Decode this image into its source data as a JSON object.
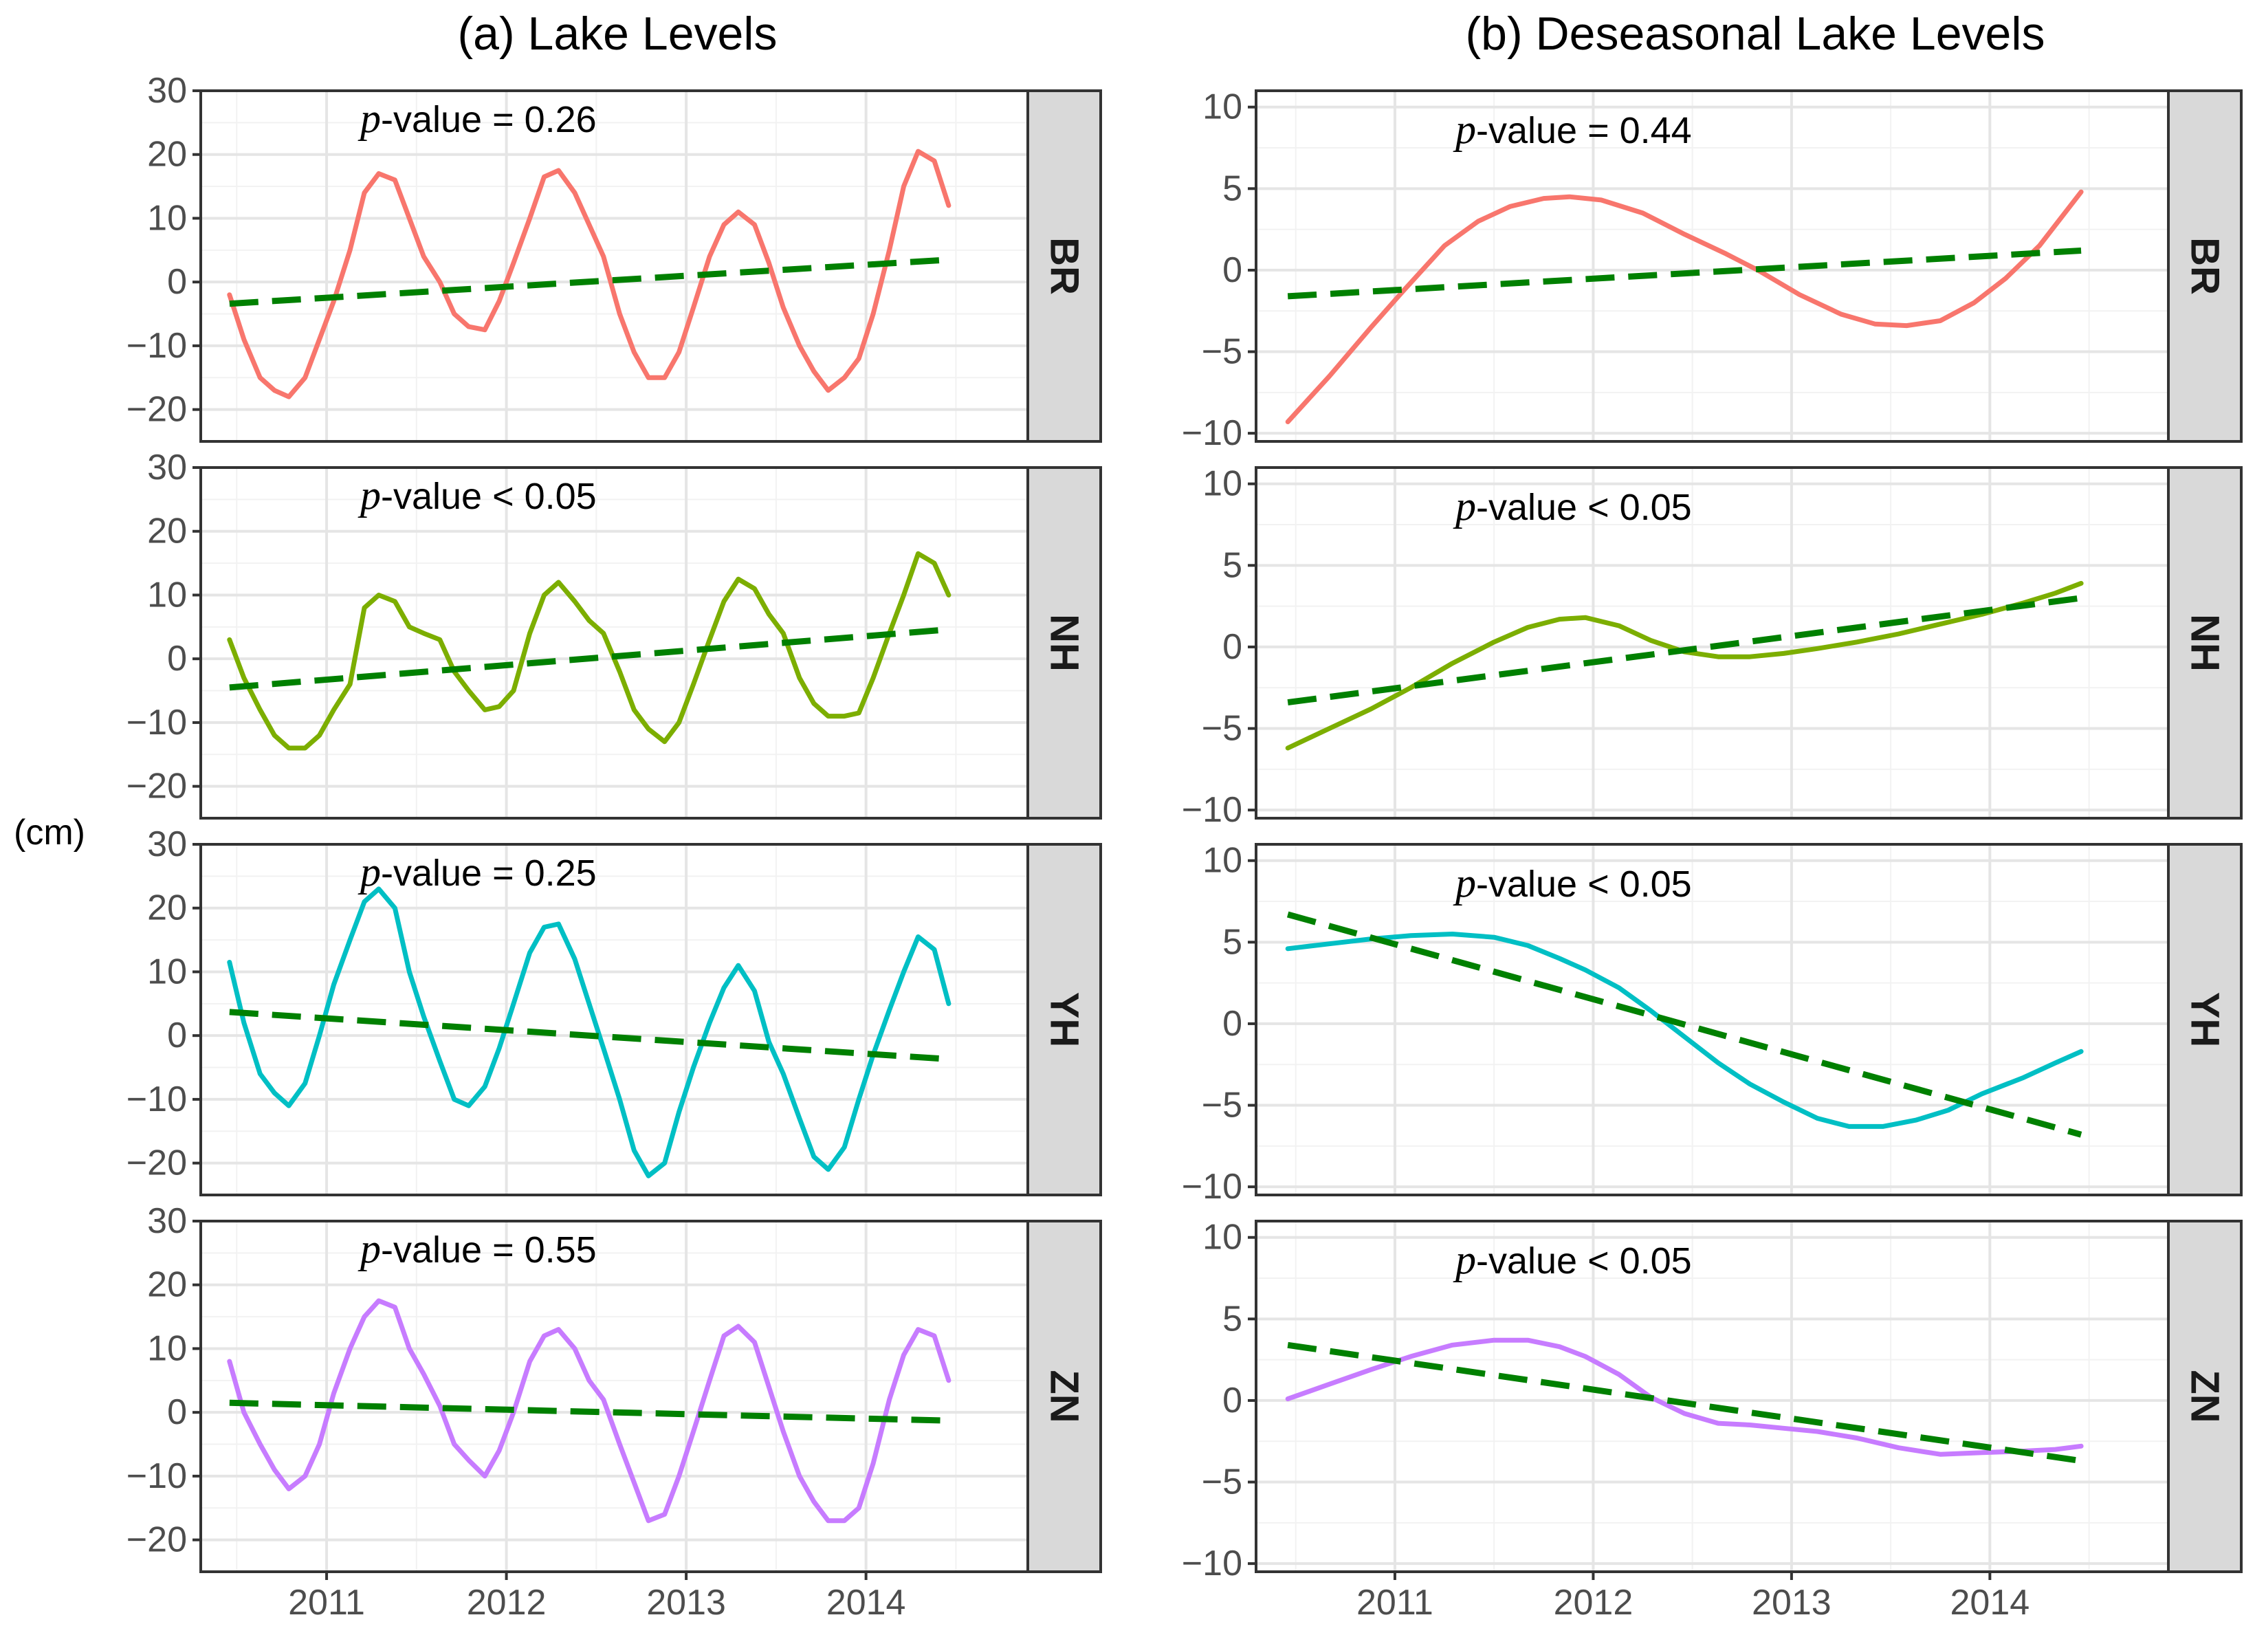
{
  "chart_data": {
    "type": "line",
    "y_axis_label": "(cm)",
    "trend_color": "#008000",
    "columns": [
      {
        "title": "(a) Lake Levels",
        "ylim": [
          -25,
          30
        ],
        "y_ticks": [
          -20,
          -10,
          0,
          10,
          20,
          30
        ],
        "y_tick_labels": [
          "−20",
          "−10",
          "0",
          "10",
          "20",
          "30"
        ],
        "x_ticks": [
          2011,
          2012,
          2013,
          2014
        ],
        "x_tick_labels": [
          "2011",
          "2012",
          "2013",
          "2014"
        ],
        "xlim": [
          2010.3,
          2014.9
        ]
      },
      {
        "title": "(b) Deseasonal Lake Levels",
        "ylim": [
          -10.5,
          11
        ],
        "y_ticks": [
          -10,
          -5,
          0,
          5,
          10
        ],
        "y_tick_labels": [
          "−10",
          "−5",
          "0",
          "5",
          "10"
        ],
        "x_ticks": [
          2011,
          2012,
          2013,
          2014
        ],
        "x_tick_labels": [
          "2011",
          "2012",
          "2013",
          "2014"
        ],
        "xlim": [
          2010.3,
          2014.9
        ]
      }
    ],
    "panels": [
      {
        "col": 0,
        "row": 0,
        "lake": "BR",
        "color": "#F8766D",
        "p_label": "p",
        "p_text": "-value = 0.26",
        "x": [
          2010.46,
          2010.54,
          2010.63,
          2010.71,
          2010.79,
          2010.88,
          2010.96,
          2011.04,
          2011.13,
          2011.21,
          2011.29,
          2011.38,
          2011.46,
          2011.54,
          2011.63,
          2011.71,
          2011.79,
          2011.88,
          2011.96,
          2012.04,
          2012.13,
          2012.21,
          2012.29,
          2012.38,
          2012.46,
          2012.54,
          2012.63,
          2012.71,
          2012.79,
          2012.88,
          2012.96,
          2013.04,
          2013.13,
          2013.21,
          2013.29,
          2013.38,
          2013.46,
          2013.54,
          2013.63,
          2013.71,
          2013.79,
          2013.88,
          2013.96,
          2014.04,
          2014.13,
          2014.21,
          2014.29,
          2014.38,
          2014.46
        ],
        "y": [
          -2,
          -9,
          -15,
          -17,
          -18,
          -15,
          -9,
          -3,
          5,
          14,
          17,
          16,
          10,
          4,
          0,
          -5,
          -7,
          -7.5,
          -3,
          3,
          10,
          16.5,
          17.5,
          14,
          9,
          4,
          -5,
          -11,
          -15,
          -15,
          -11,
          -4,
          4,
          9,
          11,
          9,
          3,
          -4,
          -10,
          -14,
          -17,
          -15,
          -12,
          -5,
          5,
          15,
          20.5,
          19,
          12
        ],
        "trend_x": [
          2010.46,
          2014.46
        ],
        "trend_y": [
          -3.4,
          3.5
        ]
      },
      {
        "col": 0,
        "row": 1,
        "lake": "NH",
        "color": "#7CAE00",
        "p_label": "p",
        "p_text": "-value < 0.05",
        "x": [
          2010.46,
          2010.54,
          2010.63,
          2010.71,
          2010.79,
          2010.88,
          2010.96,
          2011.04,
          2011.13,
          2011.21,
          2011.29,
          2011.38,
          2011.46,
          2011.54,
          2011.63,
          2011.71,
          2011.79,
          2011.88,
          2011.96,
          2012.04,
          2012.13,
          2012.21,
          2012.29,
          2012.38,
          2012.46,
          2012.54,
          2012.63,
          2012.71,
          2012.79,
          2012.88,
          2012.96,
          2013.04,
          2013.13,
          2013.21,
          2013.29,
          2013.38,
          2013.46,
          2013.54,
          2013.63,
          2013.71,
          2013.79,
          2013.88,
          2013.96,
          2014.04,
          2014.13,
          2014.21,
          2014.29,
          2014.38,
          2014.46
        ],
        "y": [
          3,
          -3,
          -8,
          -12,
          -14,
          -14,
          -12,
          -8,
          -4,
          8,
          10,
          9,
          5,
          4,
          3,
          -2,
          -5,
          -8,
          -7.5,
          -5,
          4,
          10,
          12,
          9,
          6,
          4,
          -2,
          -8,
          -11,
          -13,
          -10,
          -4,
          3,
          9,
          12.5,
          11,
          7,
          4,
          -3,
          -7,
          -9,
          -9,
          -8.5,
          -3,
          4,
          10,
          16.5,
          15,
          10
        ],
        "trend_x": [
          2010.46,
          2014.46
        ],
        "trend_y": [
          -4.5,
          4.6
        ]
      },
      {
        "col": 0,
        "row": 2,
        "lake": "YH",
        "color": "#00BFC4",
        "p_label": "p",
        "p_text": "-value = 0.25",
        "x": [
          2010.46,
          2010.54,
          2010.63,
          2010.71,
          2010.79,
          2010.88,
          2010.96,
          2011.04,
          2011.13,
          2011.21,
          2011.29,
          2011.38,
          2011.46,
          2011.54,
          2011.63,
          2011.71,
          2011.79,
          2011.88,
          2011.96,
          2012.04,
          2012.13,
          2012.21,
          2012.29,
          2012.38,
          2012.46,
          2012.54,
          2012.63,
          2012.71,
          2012.79,
          2012.88,
          2012.96,
          2013.04,
          2013.13,
          2013.21,
          2013.29,
          2013.38,
          2013.46,
          2013.54,
          2013.63,
          2013.71,
          2013.79,
          2013.88,
          2013.96,
          2014.04,
          2014.13,
          2014.21,
          2014.29,
          2014.38,
          2014.46
        ],
        "y": [
          11.5,
          2,
          -6,
          -9,
          -11,
          -7.5,
          0,
          8,
          15,
          21,
          23,
          20,
          10,
          3,
          -4,
          -10,
          -11,
          -8,
          -2,
          5,
          13,
          17,
          17.5,
          12,
          5,
          -2,
          -10,
          -18,
          -22,
          -20,
          -12,
          -5,
          2,
          7.5,
          11,
          7,
          -1,
          -6,
          -13,
          -19,
          -21,
          -17.5,
          -10,
          -3,
          4,
          10,
          15.5,
          13.5,
          5
        ],
        "trend_x": [
          2010.46,
          2014.46
        ],
        "trend_y": [
          3.7,
          -3.7
        ]
      },
      {
        "col": 0,
        "row": 3,
        "lake": "ZN",
        "color": "#C77CFF",
        "p_label": "p",
        "p_text": "-value = 0.55",
        "x": [
          2010.46,
          2010.54,
          2010.63,
          2010.71,
          2010.79,
          2010.88,
          2010.96,
          2011.04,
          2011.13,
          2011.21,
          2011.29,
          2011.38,
          2011.46,
          2011.54,
          2011.63,
          2011.71,
          2011.79,
          2011.88,
          2011.96,
          2012.04,
          2012.13,
          2012.21,
          2012.29,
          2012.38,
          2012.46,
          2012.54,
          2012.63,
          2012.71,
          2012.79,
          2012.88,
          2012.96,
          2013.04,
          2013.13,
          2013.21,
          2013.29,
          2013.38,
          2013.46,
          2013.54,
          2013.63,
          2013.71,
          2013.79,
          2013.88,
          2013.96,
          2014.04,
          2014.13,
          2014.21,
          2014.29,
          2014.38,
          2014.46
        ],
        "y": [
          8,
          0,
          -5,
          -9,
          -12,
          -10,
          -5,
          3,
          10,
          15,
          17.5,
          16.5,
          10,
          6,
          1,
          -5,
          -7.5,
          -10,
          -6,
          0,
          8,
          12,
          13,
          10,
          5,
          2,
          -5,
          -11,
          -17,
          -16,
          -10,
          -3,
          5,
          12,
          13.5,
          11,
          4,
          -3,
          -10,
          -14,
          -17,
          -17,
          -15,
          -8,
          2,
          9,
          13,
          12,
          5
        ],
        "trend_x": [
          2010.46,
          2014.46
        ],
        "trend_y": [
          1.5,
          -1.3
        ]
      },
      {
        "col": 1,
        "row": 0,
        "lake": "BR",
        "color": "#F8766D",
        "p_label": "p",
        "p_text": "-value = 0.44",
        "x": [
          2010.46,
          2010.67,
          2010.88,
          2011.04,
          2011.25,
          2011.42,
          2011.58,
          2011.75,
          2011.88,
          2012.04,
          2012.25,
          2012.46,
          2012.67,
          2012.83,
          2013.04,
          2013.25,
          2013.42,
          2013.58,
          2013.75,
          2013.92,
          2014.08,
          2014.25,
          2014.46
        ],
        "y": [
          -9.3,
          -6.5,
          -3.5,
          -1.3,
          1.5,
          3.0,
          3.9,
          4.4,
          4.5,
          4.3,
          3.5,
          2.2,
          1.0,
          0.0,
          -1.5,
          -2.7,
          -3.3,
          -3.4,
          -3.1,
          -2.0,
          -0.5,
          1.5,
          4.8
        ],
        "trend_x": [
          2010.46,
          2014.46
        ],
        "trend_y": [
          -1.6,
          1.2
        ]
      },
      {
        "col": 1,
        "row": 1,
        "lake": "NH",
        "color": "#7CAE00",
        "p_label": "p",
        "p_text": "-value < 0.05",
        "x": [
          2010.46,
          2010.67,
          2010.88,
          2011.08,
          2011.29,
          2011.5,
          2011.67,
          2011.83,
          2011.96,
          2012.13,
          2012.29,
          2012.46,
          2012.63,
          2012.79,
          2012.96,
          2013.13,
          2013.33,
          2013.54,
          2013.75,
          2013.96,
          2014.17,
          2014.33,
          2014.46
        ],
        "y": [
          -6.2,
          -5.0,
          -3.8,
          -2.5,
          -1.0,
          0.3,
          1.2,
          1.7,
          1.8,
          1.3,
          0.4,
          -0.3,
          -0.6,
          -0.6,
          -0.4,
          -0.1,
          0.3,
          0.8,
          1.4,
          2.0,
          2.7,
          3.3,
          3.9
        ],
        "trend_x": [
          2010.46,
          2014.46
        ],
        "trend_y": [
          -3.4,
          3.0
        ]
      },
      {
        "col": 1,
        "row": 2,
        "lake": "YH",
        "color": "#00BFC4",
        "p_label": "p",
        "p_text": "-value < 0.05",
        "x": [
          2010.46,
          2010.67,
          2010.88,
          2011.08,
          2011.29,
          2011.5,
          2011.67,
          2011.83,
          2011.96,
          2012.13,
          2012.29,
          2012.46,
          2012.63,
          2012.79,
          2012.96,
          2013.13,
          2013.29,
          2013.46,
          2013.63,
          2013.79,
          2013.96,
          2014.17,
          2014.33,
          2014.46
        ],
        "y": [
          4.6,
          4.9,
          5.2,
          5.4,
          5.5,
          5.3,
          4.8,
          4.0,
          3.3,
          2.2,
          0.8,
          -0.8,
          -2.4,
          -3.7,
          -4.8,
          -5.8,
          -6.3,
          -6.3,
          -5.9,
          -5.3,
          -4.3,
          -3.3,
          -2.4,
          -1.7
        ],
        "trend_x": [
          2010.46,
          2014.46
        ],
        "trend_y": [
          6.7,
          -6.8
        ]
      },
      {
        "col": 1,
        "row": 3,
        "lake": "ZN",
        "color": "#C77CFF",
        "p_label": "p",
        "p_text": "-value < 0.05",
        "x": [
          2010.46,
          2010.67,
          2010.88,
          2011.08,
          2011.29,
          2011.5,
          2011.67,
          2011.83,
          2011.96,
          2012.13,
          2012.29,
          2012.46,
          2012.63,
          2012.79,
          2012.96,
          2013.13,
          2013.33,
          2013.54,
          2013.75,
          2013.96,
          2014.17,
          2014.33,
          2014.46
        ],
        "y": [
          0.1,
          1.0,
          1.9,
          2.7,
          3.4,
          3.7,
          3.7,
          3.3,
          2.7,
          1.6,
          0.2,
          -0.8,
          -1.4,
          -1.5,
          -1.7,
          -1.9,
          -2.3,
          -2.9,
          -3.3,
          -3.2,
          -3.1,
          -3.0,
          -2.8
        ],
        "trend_x": [
          2010.46,
          2014.46
        ],
        "trend_y": [
          3.4,
          -3.7
        ]
      }
    ]
  }
}
